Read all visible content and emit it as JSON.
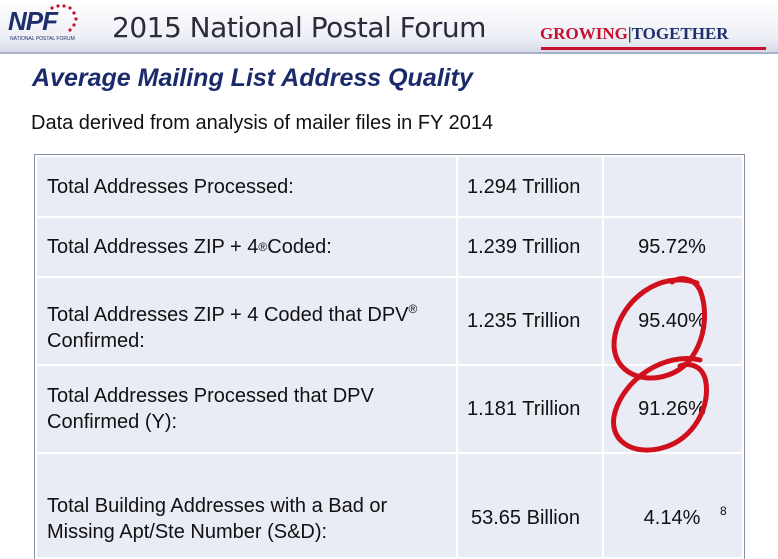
{
  "header": {
    "logo_text_a": "NP",
    "logo_text_b": "F",
    "logo_sub": "NATIONAL POSTAL FORUM",
    "title": "2015 National Postal Forum",
    "tagline_a": "GROWING",
    "tagline_sep": "|",
    "tagline_b": "TOGETHER"
  },
  "slide": {
    "title": "Average Mailing List Address Quality",
    "subtitle": "Data derived from analysis of  mailer files in FY 2014",
    "page_number": "8"
  },
  "table": {
    "rows": [
      {
        "label": "Total Addresses Processed:",
        "value": "1.294 Trillion",
        "percent": ""
      },
      {
        "label_a": "Total Addresses ZIP + 4",
        "label_sup": "®",
        "label_b": " Coded:",
        "value": "1.239 Trillion",
        "percent": "95.72%"
      },
      {
        "label_a": "Total Addresses ZIP + 4 Coded that DPV",
        "label_sup": "®",
        "label_b": "Confirmed:",
        "value": "1.235 Trillion",
        "percent": "95.40%"
      },
      {
        "label_a": "Total Addresses Processed that DPV",
        "label_b": "Confirmed (Y):",
        "value": "1.181 Trillion",
        "percent": "91.26%"
      },
      {
        "label_a": "Total  Building Addresses with a Bad or",
        "label_b": "Missing Apt/Ste Number (S&D):",
        "value": "53.65 Billion",
        "percent": "4.14%"
      }
    ]
  },
  "colors": {
    "title": "#1b2a6a",
    "table_bg": "#e9ebf5",
    "annotation": "#d0101c"
  }
}
